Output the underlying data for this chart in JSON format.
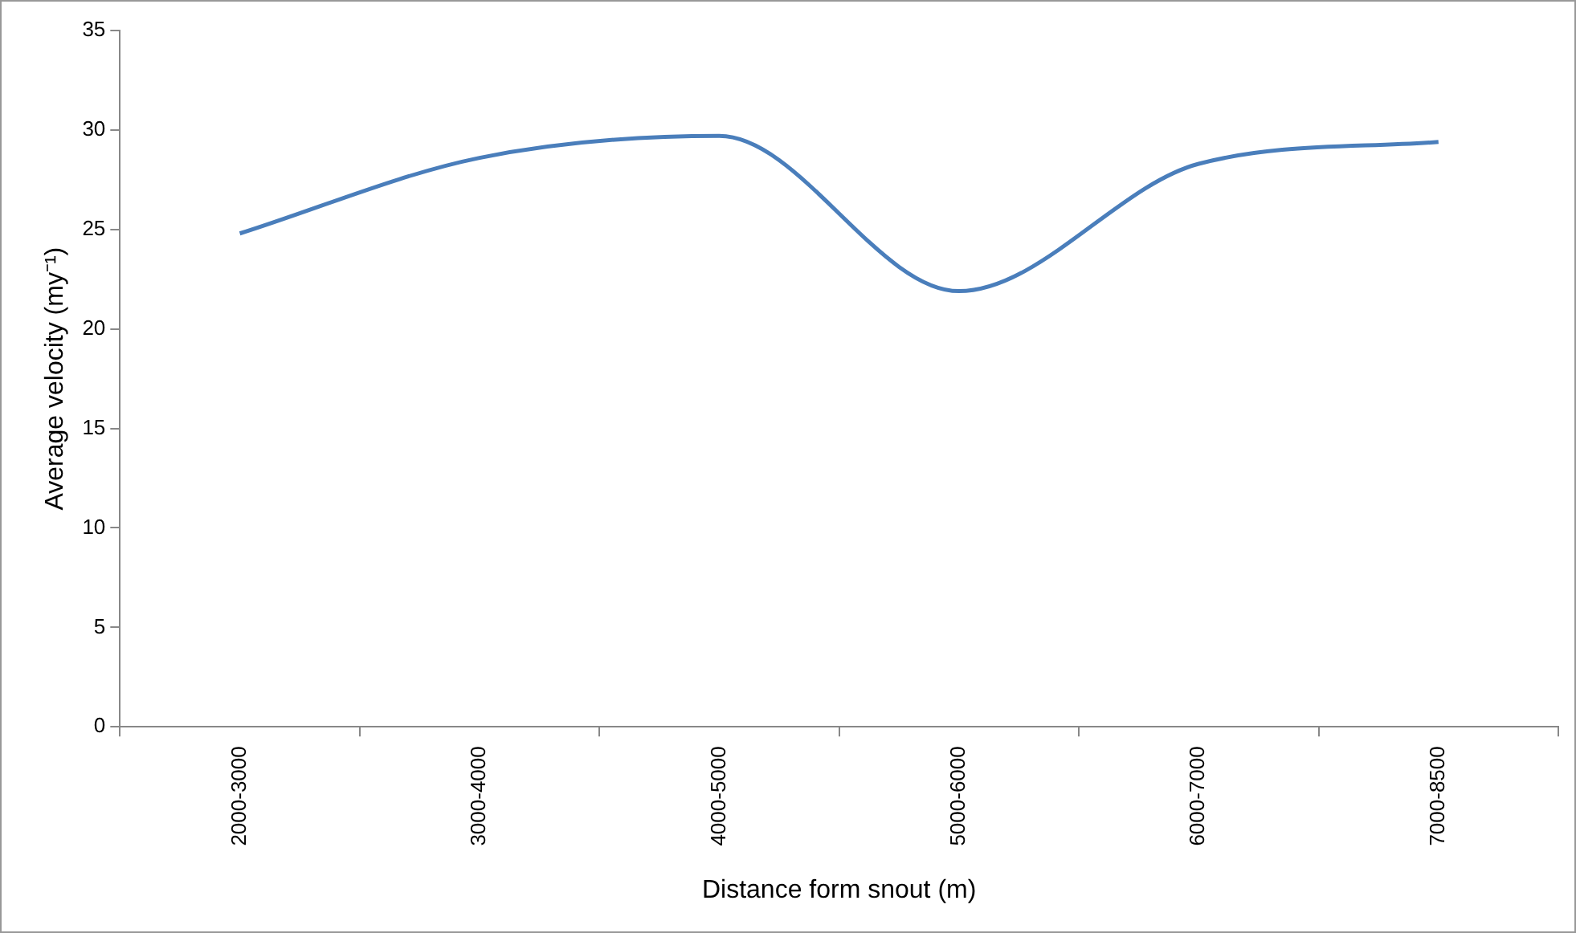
{
  "chart_data": {
    "type": "line",
    "xlabel": "Distance form snout (m)",
    "ylabel": "Average velocity (my⁻¹)",
    "categories": [
      "2000-3000",
      "3000-4000",
      "4000-5000",
      "5000-6000",
      "6000-7000",
      "7000-8500"
    ],
    "series": [
      {
        "color": "#4a7ebb",
        "values": [
          24.8,
          28.6,
          29.7,
          21.9,
          28.3,
          29.4
        ]
      }
    ],
    "ylim": [
      0,
      35
    ],
    "yticks": [
      0,
      5,
      10,
      15,
      20,
      25,
      30,
      35
    ],
    "grid": false,
    "legend": false,
    "marker": "none",
    "line_style": "solid"
  }
}
